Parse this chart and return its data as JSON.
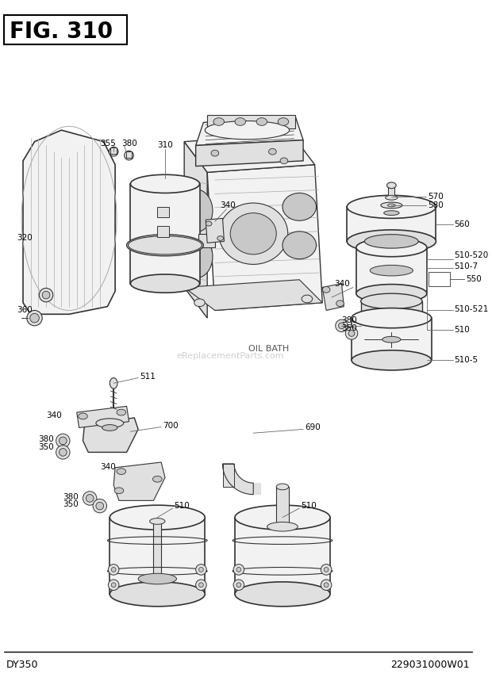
{
  "title": "FIG. 310",
  "footer_left": "DY350",
  "footer_right": "229031000W01",
  "watermark": "eReplacementParts.com",
  "oil_bath_label": "OIL BATH",
  "bg": "#ffffff",
  "lc": "#333333",
  "tc": "#000000",
  "gray1": "#f2f2f2",
  "gray2": "#e0e0e0",
  "gray3": "#c8c8c8",
  "gray4": "#b0b0b0",
  "title_fontsize": 20,
  "label_fontsize": 7.5,
  "footer_fontsize": 9
}
